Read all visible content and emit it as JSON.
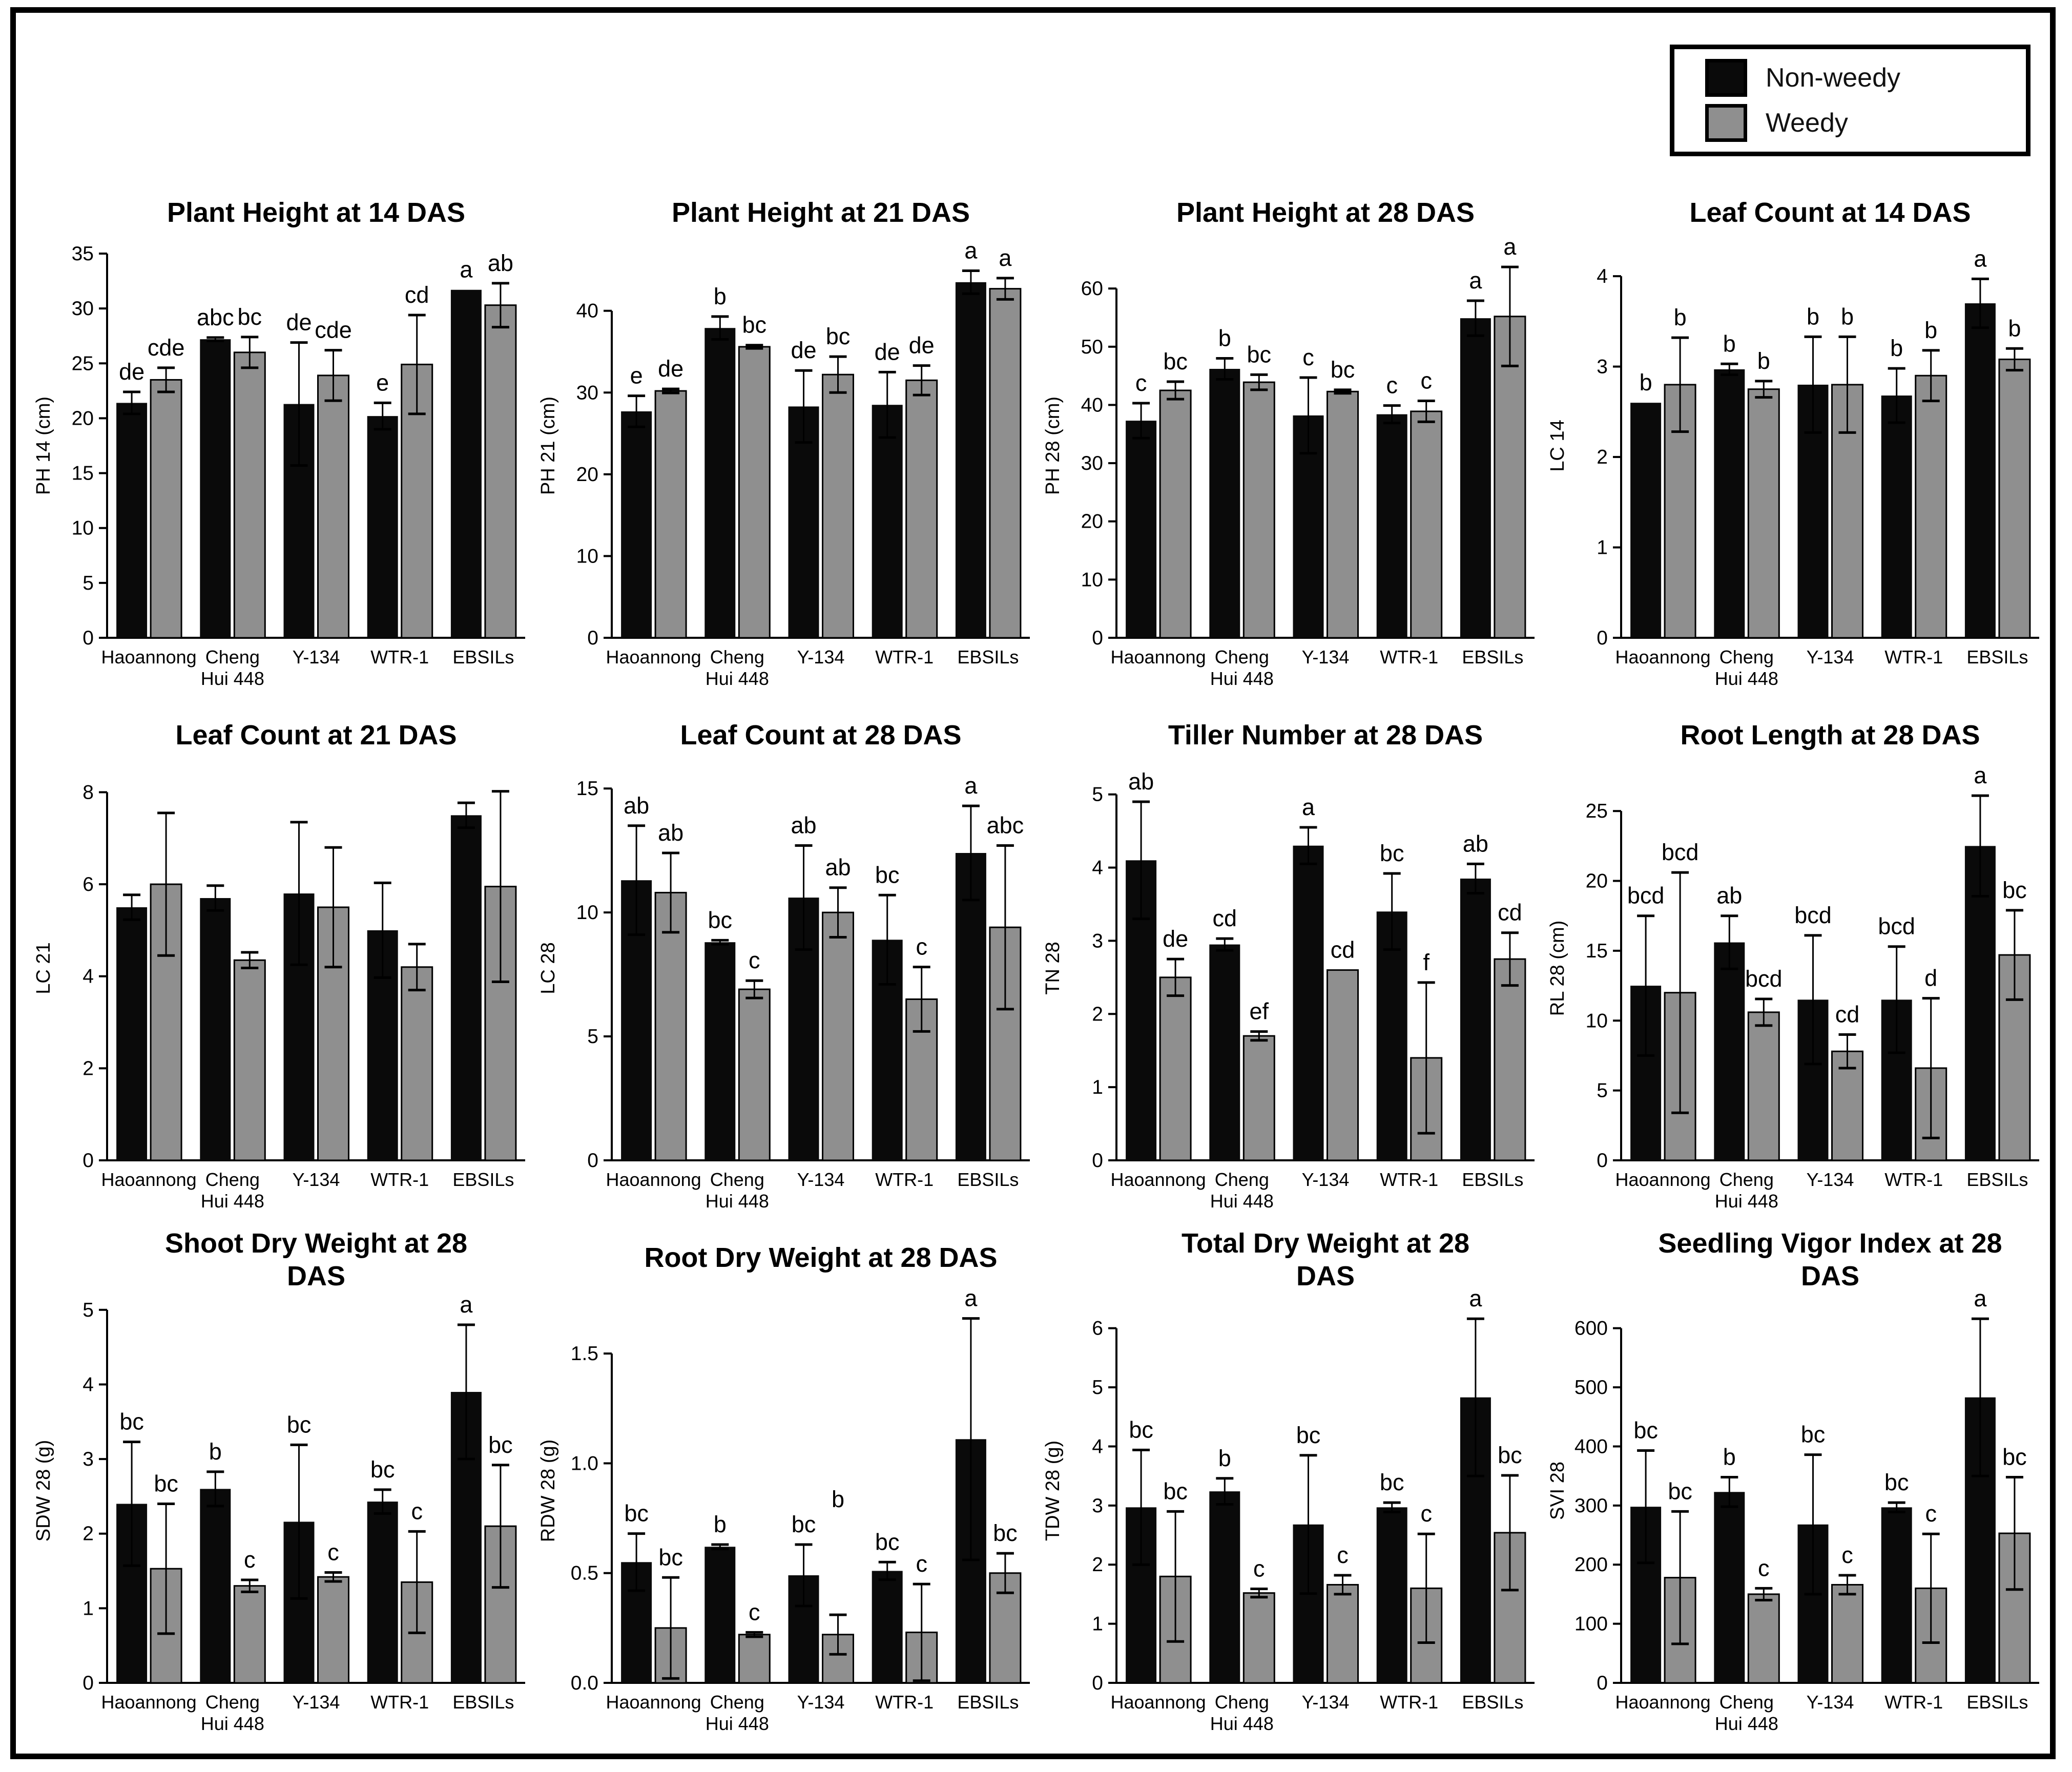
{
  "figure": {
    "background": "#ffffff",
    "border_color": "#000000"
  },
  "legend": {
    "items": [
      {
        "label": "Non-weedy",
        "color": "#0a0a0a"
      },
      {
        "label": "Weedy",
        "color": "#8f8f8f"
      }
    ]
  },
  "chart_data": [
    {
      "type": "bar",
      "title": "Plant Height at 14 DAS",
      "ylabel": "PH 14 (cm)",
      "ylim": [
        0,
        35
      ],
      "yticks": [
        0,
        5,
        10,
        15,
        20,
        25,
        30,
        35
      ],
      "grid": false,
      "categories": [
        "Haoannong",
        "Cheng Hui 448",
        "Y-134",
        "WTR-1",
        "EBSILs"
      ],
      "series": [
        {
          "name": "Non-weedy",
          "color": "#0a0a0a",
          "values": [
            21.4,
            27.2,
            21.3,
            20.2,
            31.7
          ],
          "errors": [
            1.0,
            0.15,
            5.6,
            1.2,
            0
          ],
          "letters": [
            "de",
            "abc",
            "de",
            "e",
            "a"
          ]
        },
        {
          "name": "Weedy",
          "color": "#8f8f8f",
          "values": [
            23.5,
            26.0,
            23.9,
            24.9,
            30.3
          ],
          "errors": [
            1.1,
            1.4,
            2.3,
            4.5,
            2.0
          ],
          "letters": [
            "cde",
            "bc",
            "cde",
            "cd",
            "ab"
          ]
        }
      ]
    },
    {
      "type": "bar",
      "title": "Plant Height at 21 DAS",
      "ylabel": "PH 21 (cm)",
      "ylim": [
        0,
        47
      ],
      "yticks": [
        0,
        10,
        20,
        30,
        40
      ],
      "grid": false,
      "categories": [
        "Haoannong",
        "Cheng Hui 448",
        "Y-134",
        "WTR-1",
        "EBSILs"
      ],
      "series": [
        {
          "name": "Non-weedy",
          "color": "#0a0a0a",
          "values": [
            27.7,
            37.9,
            28.3,
            28.5,
            43.5
          ],
          "errors": [
            1.9,
            1.4,
            4.4,
            4.0,
            1.4
          ],
          "letters": [
            "e",
            "b",
            "de",
            "de",
            "a"
          ]
        },
        {
          "name": "Weedy",
          "color": "#8f8f8f",
          "values": [
            30.2,
            35.6,
            32.2,
            31.5,
            42.7
          ],
          "errors": [
            0.25,
            0.2,
            2.2,
            1.8,
            1.3
          ],
          "letters": [
            "de",
            "bc",
            "bc",
            "de",
            "a"
          ]
        }
      ]
    },
    {
      "type": "bar",
      "title": "Plant Height at 28 DAS",
      "ylabel": "PH 28 (cm)",
      "ylim": [
        0,
        66
      ],
      "yticks": [
        0,
        10,
        20,
        30,
        40,
        50,
        60
      ],
      "grid": false,
      "categories": [
        "Haoannong",
        "Cheng Hui 448",
        "Y-134",
        "WTR-1",
        "EBSILs"
      ],
      "series": [
        {
          "name": "Non-weedy",
          "color": "#0a0a0a",
          "values": [
            37.3,
            46.2,
            38.2,
            38.4,
            54.9
          ],
          "errors": [
            3.0,
            1.8,
            6.5,
            1.5,
            3.0
          ],
          "letters": [
            "c",
            "b",
            "c",
            "c",
            "a"
          ]
        },
        {
          "name": "Weedy",
          "color": "#8f8f8f",
          "values": [
            42.5,
            43.9,
            42.3,
            38.9,
            55.2
          ],
          "errors": [
            1.5,
            1.3,
            0.3,
            1.8,
            8.5
          ],
          "letters": [
            "bc",
            "bc",
            "bc",
            "c",
            "a"
          ]
        }
      ]
    },
    {
      "type": "bar",
      "title": "Leaf Count at 14 DAS",
      "ylabel": "LC 14",
      "ylim": [
        0,
        4.25
      ],
      "yticks": [
        0,
        1,
        2,
        3,
        4
      ],
      "grid": false,
      "categories": [
        "Haoannong",
        "Cheng Hui 448",
        "Y-134",
        "WTR-1",
        "EBSILs"
      ],
      "series": [
        {
          "name": "Non-weedy",
          "color": "#0a0a0a",
          "values": [
            2.6,
            2.97,
            2.8,
            2.68,
            3.7
          ],
          "errors": [
            0,
            0.06,
            0.53,
            0.3,
            0.27
          ],
          "letters": [
            "b",
            "b",
            "b",
            "b",
            "a"
          ]
        },
        {
          "name": "Weedy",
          "color": "#8f8f8f",
          "values": [
            2.8,
            2.75,
            2.8,
            2.9,
            3.08
          ],
          "errors": [
            0.52,
            0.09,
            0.53,
            0.28,
            0.12
          ],
          "letters": [
            "b",
            "b",
            "b",
            "b",
            "b"
          ]
        }
      ]
    },
    {
      "type": "bar",
      "title": "Leaf Count at 21 DAS",
      "ylabel": "LC 21",
      "ylim": [
        0,
        8.35
      ],
      "yticks": [
        0,
        2,
        4,
        6,
        8
      ],
      "grid": false,
      "categories": [
        "Haoannong",
        "Cheng Hui 448",
        "Y-134",
        "WTR-1",
        "EBSILs"
      ],
      "series": [
        {
          "name": "Non-weedy",
          "color": "#0a0a0a",
          "values": [
            5.5,
            5.7,
            5.8,
            5.0,
            7.5
          ],
          "errors": [
            0.27,
            0.27,
            1.55,
            1.03,
            0.27
          ],
          "letters": [
            "",
            "",
            "",
            "",
            ""
          ]
        },
        {
          "name": "Weedy",
          "color": "#8f8f8f",
          "values": [
            6.0,
            4.35,
            5.5,
            4.2,
            5.95
          ],
          "errors": [
            1.55,
            0.17,
            1.3,
            0.5,
            2.07
          ],
          "letters": [
            "",
            "",
            "",
            "",
            ""
          ]
        }
      ]
    },
    {
      "type": "bar",
      "title": "Leaf Count at 28 DAS",
      "ylabel": "LC 28",
      "ylim": [
        0,
        15.5
      ],
      "yticks": [
        0,
        5,
        10,
        15
      ],
      "grid": false,
      "categories": [
        "Haoannong",
        "Cheng Hui 448",
        "Y-134",
        "WTR-1",
        "EBSILs"
      ],
      "series": [
        {
          "name": "Non-weedy",
          "color": "#0a0a0a",
          "values": [
            11.3,
            8.8,
            10.6,
            8.9,
            12.4
          ],
          "errors": [
            2.2,
            0.08,
            2.1,
            1.8,
            1.9
          ],
          "letters": [
            "ab",
            "bc",
            "ab",
            "bc",
            "a"
          ]
        },
        {
          "name": "Weedy",
          "color": "#8f8f8f",
          "values": [
            10.8,
            6.9,
            10.0,
            6.5,
            9.4
          ],
          "errors": [
            1.6,
            0.35,
            1.0,
            1.3,
            3.3
          ],
          "letters": [
            "ab",
            "c",
            "ab",
            "c",
            "abc"
          ]
        }
      ]
    },
    {
      "type": "bar",
      "title": "Tiller Number at 28 DAS",
      "ylabel": "TN 28",
      "ylim": [
        0,
        5.25
      ],
      "yticks": [
        0,
        1,
        2,
        3,
        4,
        5
      ],
      "grid": false,
      "categories": [
        "Haoannong",
        "Cheng Hui 448",
        "Y-134",
        "WTR-1",
        "EBSILs"
      ],
      "series": [
        {
          "name": "Non-weedy",
          "color": "#0a0a0a",
          "values": [
            4.1,
            2.95,
            4.3,
            3.4,
            3.85
          ],
          "errors": [
            0.8,
            0.08,
            0.25,
            0.52,
            0.2
          ],
          "letters": [
            "ab",
            "cd",
            "a",
            "bc",
            "ab"
          ]
        },
        {
          "name": "Weedy",
          "color": "#8f8f8f",
          "values": [
            2.5,
            1.7,
            2.6,
            1.4,
            2.75
          ],
          "errors": [
            0.25,
            0.06,
            0,
            1.03,
            0.36
          ],
          "letters": [
            "de",
            "ef",
            "cd",
            "f",
            "cd"
          ]
        }
      ]
    },
    {
      "type": "bar",
      "title": "Root Length at 28 DAS",
      "ylabel": "RL 28 (cm)",
      "ylim": [
        0,
        27.5
      ],
      "yticks": [
        0,
        5,
        10,
        15,
        20,
        25
      ],
      "grid": false,
      "categories": [
        "Haoannong",
        "Cheng Hui 448",
        "Y-134",
        "WTR-1",
        "EBSILs"
      ],
      "series": [
        {
          "name": "Non-weedy",
          "color": "#0a0a0a",
          "values": [
            12.5,
            15.6,
            11.5,
            11.5,
            22.5
          ],
          "errors": [
            5.0,
            1.9,
            4.6,
            3.8,
            3.6
          ],
          "letters": [
            "bcd",
            "ab",
            "bcd",
            "bcd",
            "a"
          ]
        },
        {
          "name": "Weedy",
          "color": "#8f8f8f",
          "values": [
            12.0,
            10.6,
            7.8,
            6.6,
            14.7
          ],
          "errors": [
            8.6,
            0.95,
            1.2,
            5.0,
            3.2
          ],
          "letters": [
            "bcd",
            "bcd",
            "cd",
            "d",
            "bc"
          ]
        }
      ]
    },
    {
      "type": "bar",
      "title": "Shoot Dry Weight at 28\nDAS",
      "ylabel": "SDW 28 (g)",
      "ylim": [
        0,
        5.15
      ],
      "yticks": [
        0,
        1,
        2,
        3,
        4,
        5
      ],
      "grid": false,
      "categories": [
        "Haoannong",
        "Cheng Hui 448",
        "Y-134",
        "WTR-1",
        "EBSILs"
      ],
      "series": [
        {
          "name": "Non-weedy",
          "color": "#0a0a0a",
          "values": [
            2.4,
            2.6,
            2.16,
            2.43,
            3.9
          ],
          "errors": [
            0.83,
            0.23,
            1.03,
            0.16,
            0.9
          ],
          "letters": [
            "bc",
            "b",
            "bc",
            "bc",
            "a"
          ]
        },
        {
          "name": "Weedy",
          "color": "#8f8f8f",
          "values": [
            1.53,
            1.3,
            1.42,
            1.35,
            2.1
          ],
          "errors": [
            0.87,
            0.08,
            0.06,
            0.68,
            0.82
          ],
          "letters": [
            "bc",
            "c",
            "c",
            "c",
            "bc"
          ]
        }
      ]
    },
    {
      "type": "bar",
      "title": "Root Dry Weight at 28 DAS",
      "ylabel": "RDW 28 (g)",
      "ylim": [
        0,
        1.75
      ],
      "yticks": [
        0,
        0.5,
        1.0,
        1.5
      ],
      "ytick_labels": [
        "0.0",
        "0.5",
        "1.0",
        "1.5"
      ],
      "grid": false,
      "categories": [
        "Haoannong",
        "Cheng Hui 448",
        "Y-134",
        "WTR-1",
        "EBSILs"
      ],
      "series": [
        {
          "name": "Non-weedy",
          "color": "#0a0a0a",
          "values": [
            0.55,
            0.62,
            0.49,
            0.51,
            1.11
          ],
          "errors": [
            0.13,
            0.01,
            0.14,
            0.04,
            0.55
          ],
          "letters": [
            "bc",
            "b",
            "bc",
            "bc",
            "a"
          ]
        },
        {
          "name": "Weedy",
          "color": "#8f8f8f",
          "values": [
            0.25,
            0.22,
            0.22,
            0.23,
            0.5
          ],
          "errors": [
            0.23,
            0.01,
            0.09,
            0.22,
            0.09
          ],
          "letters": [
            "bc",
            "c",
            "b",
            "c",
            "bc"
          ],
          "letter_y": [
            null,
            null,
            0.8,
            null,
            null
          ]
        }
      ]
    },
    {
      "type": "bar",
      "title": "Total Dry Weight at 28\nDAS",
      "ylabel": "TDW 28 (g)",
      "ylim": [
        0,
        6.5
      ],
      "yticks": [
        0,
        1,
        2,
        3,
        4,
        5,
        6
      ],
      "grid": false,
      "categories": [
        "Haoannong",
        "Cheng Hui 448",
        "Y-134",
        "WTR-1",
        "EBSILs"
      ],
      "series": [
        {
          "name": "Non-weedy",
          "color": "#0a0a0a",
          "values": [
            2.97,
            3.24,
            2.68,
            2.97,
            4.83
          ],
          "errors": [
            0.97,
            0.22,
            1.17,
            0.08,
            1.33
          ],
          "letters": [
            "bc",
            "b",
            "bc",
            "bc",
            "a"
          ]
        },
        {
          "name": "Weedy",
          "color": "#8f8f8f",
          "values": [
            1.8,
            1.52,
            1.66,
            1.6,
            2.54
          ],
          "errors": [
            1.1,
            0.07,
            0.16,
            0.92,
            0.97
          ],
          "letters": [
            "bc",
            "c",
            "c",
            "c",
            "bc"
          ]
        }
      ]
    },
    {
      "type": "bar",
      "title": "Seedling Vigor Index at 28\nDAS",
      "ylabel": "SVI 28",
      "ylim": [
        0,
        650
      ],
      "yticks": [
        0,
        100,
        200,
        300,
        400,
        500,
        600
      ],
      "grid": false,
      "categories": [
        "Haoannong",
        "Cheng Hui 448",
        "Y-134",
        "WTR-1",
        "EBSILs"
      ],
      "series": [
        {
          "name": "Non-weedy",
          "color": "#0a0a0a",
          "values": [
            298,
            323,
            268,
            297,
            483
          ],
          "errors": [
            95,
            25,
            118,
            8,
            133
          ],
          "letters": [
            "bc",
            "b",
            "bc",
            "bc",
            "a"
          ]
        },
        {
          "name": "Weedy",
          "color": "#8f8f8f",
          "values": [
            178,
            150,
            166,
            160,
            253
          ],
          "errors": [
            112,
            10,
            16,
            92,
            95
          ],
          "letters": [
            "bc",
            "c",
            "c",
            "c",
            "bc"
          ]
        }
      ]
    }
  ]
}
